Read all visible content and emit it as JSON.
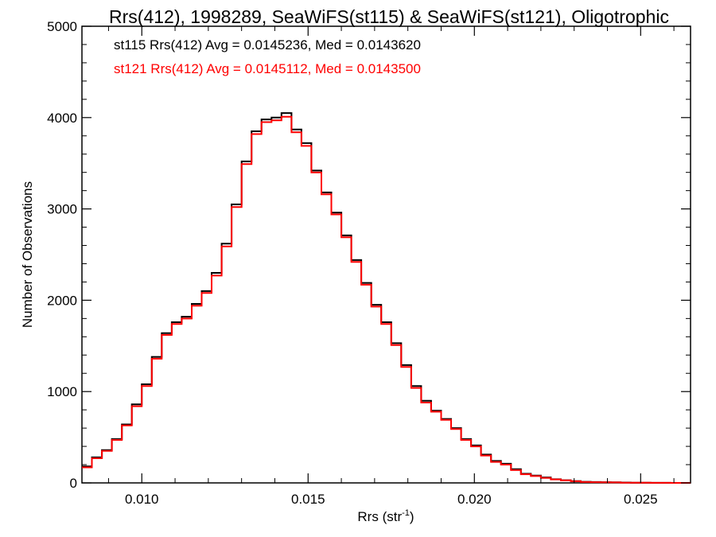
{
  "chart_data": {
    "type": "line",
    "title": "Rrs(412), 1998289, SeaWiFS(st115) & SeaWiFS(st121), Oligotrophic",
    "xlabel_main": "Rrs (str",
    "xlabel_sup": "-1",
    "xlabel_close": ")",
    "ylabel": "Number of Observations",
    "xlim": [
      0.0082,
      0.0265
    ],
    "ylim": [
      0,
      5000
    ],
    "x_ticks": [
      {
        "value": 0.01,
        "label": "0.010"
      },
      {
        "value": 0.015,
        "label": "0.015"
      },
      {
        "value": 0.02,
        "label": "0.020"
      },
      {
        "value": 0.025,
        "label": "0.025"
      }
    ],
    "y_ticks": [
      {
        "value": 0,
        "label": "0"
      },
      {
        "value": 1000,
        "label": "1000"
      },
      {
        "value": 2000,
        "label": "2000"
      },
      {
        "value": 3000,
        "label": "3000"
      },
      {
        "value": 4000,
        "label": "4000"
      },
      {
        "value": 5000,
        "label": "5000"
      }
    ],
    "grid": false,
    "annotations": [
      {
        "text": "st115 Rrs(412) Avg = 0.0145236, Med = 0.0143620",
        "color": "#000000"
      },
      {
        "text": "st121 Rrs(412) Avg = 0.0145112, Med = 0.0143500",
        "color": "#ff0000"
      }
    ],
    "series": [
      {
        "color": "#000000",
        "x": [
          0.0082,
          0.0085,
          0.0088,
          0.0091,
          0.0094,
          0.0097,
          0.01,
          0.0103,
          0.0106,
          0.0109,
          0.0112,
          0.0115,
          0.0118,
          0.0121,
          0.0124,
          0.0127,
          0.013,
          0.0133,
          0.0136,
          0.0139,
          0.0142,
          0.0145,
          0.0148,
          0.0151,
          0.0154,
          0.0157,
          0.016,
          0.0163,
          0.0166,
          0.0169,
          0.0172,
          0.0175,
          0.0178,
          0.0181,
          0.0184,
          0.0187,
          0.019,
          0.0193,
          0.0196,
          0.0199,
          0.0202,
          0.0205,
          0.0208,
          0.0211,
          0.0214,
          0.0217,
          0.022,
          0.0223,
          0.0226,
          0.0229,
          0.0232,
          0.0235,
          0.0238,
          0.0241,
          0.0244,
          0.0247,
          0.025,
          0.0253,
          0.0256,
          0.0259,
          0.0262,
          0.0265
        ],
        "y": [
          180,
          280,
          360,
          480,
          640,
          860,
          1080,
          1380,
          1640,
          1760,
          1820,
          1960,
          2100,
          2300,
          2620,
          3050,
          3520,
          3850,
          3980,
          4000,
          4050,
          3870,
          3720,
          3420,
          3180,
          2960,
          2710,
          2440,
          2190,
          1950,
          1760,
          1530,
          1290,
          1060,
          900,
          790,
          700,
          600,
          480,
          410,
          310,
          240,
          210,
          150,
          100,
          80,
          60,
          40,
          30,
          20,
          12,
          10,
          8,
          6,
          4,
          3,
          2,
          1,
          1,
          0,
          0,
          0
        ]
      },
      {
        "color": "#ff0000",
        "x": [
          0.0082,
          0.0085,
          0.0088,
          0.0091,
          0.0094,
          0.0097,
          0.01,
          0.0103,
          0.0106,
          0.0109,
          0.0112,
          0.0115,
          0.0118,
          0.0121,
          0.0124,
          0.0127,
          0.013,
          0.0133,
          0.0136,
          0.0139,
          0.0142,
          0.0145,
          0.0148,
          0.0151,
          0.0154,
          0.0157,
          0.016,
          0.0163,
          0.0166,
          0.0169,
          0.0172,
          0.0175,
          0.0178,
          0.0181,
          0.0184,
          0.0187,
          0.019,
          0.0193,
          0.0196,
          0.0199,
          0.0202,
          0.0205,
          0.0208,
          0.0211,
          0.0214,
          0.0217,
          0.022,
          0.0223,
          0.0226,
          0.0229,
          0.0232,
          0.0235,
          0.0238,
          0.0241,
          0.0244,
          0.0247,
          0.025,
          0.0253,
          0.0256,
          0.0259,
          0.0262,
          0.0265
        ],
        "y": [
          170,
          270,
          350,
          470,
          630,
          840,
          1060,
          1360,
          1620,
          1740,
          1800,
          1940,
          2080,
          2270,
          2590,
          3020,
          3490,
          3820,
          3950,
          3970,
          4010,
          3840,
          3690,
          3400,
          3160,
          2940,
          2690,
          2420,
          2170,
          1930,
          1740,
          1510,
          1270,
          1040,
          880,
          780,
          690,
          590,
          470,
          400,
          300,
          230,
          200,
          140,
          95,
          75,
          55,
          38,
          28,
          18,
          10,
          8,
          6,
          5,
          3,
          2,
          2,
          1,
          1,
          0,
          0,
          0
        ]
      }
    ]
  }
}
